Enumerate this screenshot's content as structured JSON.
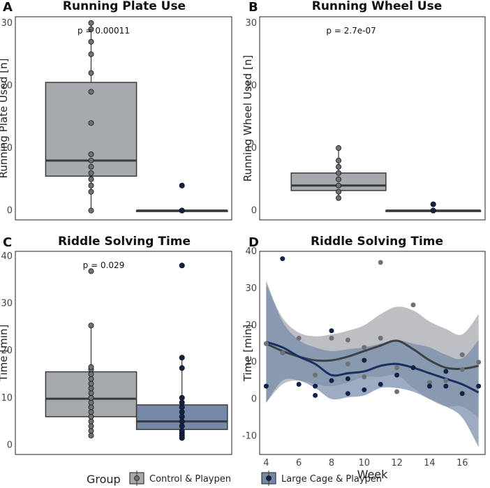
{
  "colors": {
    "control_fill": "#a7aaad",
    "control_point": "#6e7276",
    "control_line": "#3e4246",
    "large_fill": "#7489a8",
    "large_point": "#0f2248",
    "large_line": "#173160",
    "frame": "#222222"
  },
  "legend": {
    "title": "Group",
    "items": [
      {
        "label": "Control & Playpen",
        "color": "#a7aaad",
        "point": "#6e7276"
      },
      {
        "label": "Large Cage & Playpen",
        "color": "#7489a8",
        "point": "#0f2248"
      }
    ]
  },
  "chart_data": [
    {
      "panel": "A",
      "type": "box",
      "title": "Running Plate Use",
      "ylabel": "Running Plate Used [n]",
      "ylim": [
        -1.5,
        31
      ],
      "yticks": [
        0,
        10,
        20,
        30
      ],
      "pvalue": "p = 0.00011",
      "groups": [
        {
          "name": "Control & Playpen",
          "q1": 5.5,
          "median": 8,
          "q3": 20.5,
          "whisker_low": 0,
          "whisker_high": 30,
          "points": [
            0,
            3,
            4,
            5,
            6,
            7,
            8,
            9,
            14,
            19,
            22,
            25,
            27,
            29,
            30
          ]
        },
        {
          "name": "Large Cage & Playpen",
          "q1": 0,
          "median": 0,
          "q3": 0,
          "whisker_low": 0,
          "whisker_high": 0,
          "points": [
            0,
            0,
            0,
            4
          ]
        }
      ]
    },
    {
      "panel": "B",
      "type": "box",
      "title": "Running Wheel Use",
      "ylabel": "Running Wheel Used [n]",
      "ylim": [
        -1.5,
        31
      ],
      "yticks": [
        0,
        10,
        20,
        30
      ],
      "pvalue": "p = 2.7e-07",
      "groups": [
        {
          "name": "Control & Playpen",
          "q1": 3.2,
          "median": 4,
          "q3": 6,
          "whisker_low": 2,
          "whisker_high": 10,
          "points": [
            2,
            3,
            4,
            5,
            6,
            7,
            8,
            10
          ]
        },
        {
          "name": "Large Cage & Playpen",
          "q1": 0,
          "median": 0,
          "q3": 0,
          "whisker_low": 0,
          "whisker_high": 0,
          "points": [
            0,
            0,
            1
          ]
        }
      ]
    },
    {
      "panel": "C",
      "type": "box",
      "title": "Riddle Solving Time",
      "ylabel": "Time [min]",
      "ylim": [
        -2,
        41
      ],
      "yticks": [
        0,
        10,
        20,
        30,
        40
      ],
      "pvalue": "p = 0.029",
      "groups": [
        {
          "name": "Control & Playpen",
          "q1": 6,
          "median": 9.8,
          "q3": 15.5,
          "whisker_low": 2,
          "whisker_high": 25.3,
          "points": [
            2,
            3,
            4,
            5,
            6,
            7,
            8,
            9,
            10,
            11,
            12,
            13,
            14,
            15,
            16,
            16.5,
            25.3,
            36.8
          ]
        },
        {
          "name": "Large Cage & Playpen",
          "q1": 3.3,
          "median": 5,
          "q3": 8.5,
          "whisker_low": 1.5,
          "whisker_high": 18.5,
          "points": [
            1.5,
            2,
            2.5,
            3,
            4,
            5,
            6,
            7,
            8,
            9,
            10,
            16.3,
            18.5,
            38
          ]
        }
      ]
    },
    {
      "panel": "D",
      "type": "scatter",
      "title": "Riddle Solving Time",
      "xlabel": "Week",
      "ylabel": "Time [min]",
      "xlim": [
        3.6,
        17.4
      ],
      "ylim": [
        -15,
        40
      ],
      "xticks": [
        4,
        6,
        8,
        10,
        12,
        14,
        16
      ],
      "yticks": [
        -10,
        0,
        10,
        20,
        30,
        40
      ],
      "series": [
        {
          "name": "Control & Playpen",
          "points": [
            [
              4,
              15
            ],
            [
              5,
              12.5
            ],
            [
              6,
              16.5
            ],
            [
              7,
              6.5
            ],
            [
              8,
              16.5
            ],
            [
              9,
              16
            ],
            [
              9,
              9.5
            ],
            [
              10,
              14
            ],
            [
              10,
              6
            ],
            [
              11,
              37
            ],
            [
              11,
              16.5
            ],
            [
              12,
              8.5
            ],
            [
              12,
              2
            ],
            [
              13,
              25.5
            ],
            [
              14,
              4.5
            ],
            [
              15,
              5
            ],
            [
              16,
              12
            ],
            [
              16,
              8
            ],
            [
              17,
              10
            ]
          ],
          "smooth": {
            "x": [
              4,
              5,
              6,
              7,
              8,
              9,
              10,
              11,
              12,
              13,
              14,
              15,
              16,
              17
            ],
            "y": [
              15,
              13,
              11.5,
              10.5,
              10.5,
              11.5,
              13,
              14.5,
              15.8,
              13.5,
              10.5,
              8.5,
              8.2,
              9
            ],
            "upper": [
              31,
              22,
              18,
              17,
              17.5,
              18.5,
              20,
              23,
              25,
              24,
              21,
              19,
              17.5,
              23
            ],
            "lower": [
              -1,
              4,
              5,
              4,
              3.5,
              4.5,
              6,
              6,
              6.5,
              3,
              0,
              -2,
              -2,
              -5
            ]
          }
        },
        {
          "name": "Large Cage & Playpen",
          "points": [
            [
              4,
              3.5
            ],
            [
              5,
              38
            ],
            [
              6,
              4
            ],
            [
              7,
              3.5
            ],
            [
              7,
              1
            ],
            [
              8,
              18.5
            ],
            [
              8,
              5
            ],
            [
              9,
              1.5
            ],
            [
              9,
              5.5
            ],
            [
              10,
              10.5
            ],
            [
              10,
              2.5
            ],
            [
              11,
              4
            ],
            [
              12,
              6.5
            ],
            [
              13,
              8.5
            ],
            [
              14,
              3.5
            ],
            [
              15,
              3.5
            ],
            [
              15,
              7.5
            ],
            [
              16,
              1.5
            ],
            [
              17,
              3.5
            ]
          ],
          "smooth": {
            "x": [
              4,
              5,
              6,
              7,
              8,
              9,
              10,
              11,
              12,
              13,
              14,
              15,
              16,
              17
            ],
            "y": [
              15.5,
              14,
              11.5,
              9.5,
              6.5,
              7,
              7.5,
              9,
              9.5,
              8.5,
              7,
              5.5,
              4,
              1.8
            ],
            "upper": [
              32,
              21,
              16,
              14,
              13,
              13.5,
              14,
              15,
              16,
              15,
              14,
              12,
              11,
              16
            ],
            "lower": [
              -1,
              5,
              5,
              3,
              0,
              0.5,
              1,
              3,
              3,
              2,
              0,
              -2,
              -5,
              -13
            ]
          }
        }
      ]
    }
  ]
}
